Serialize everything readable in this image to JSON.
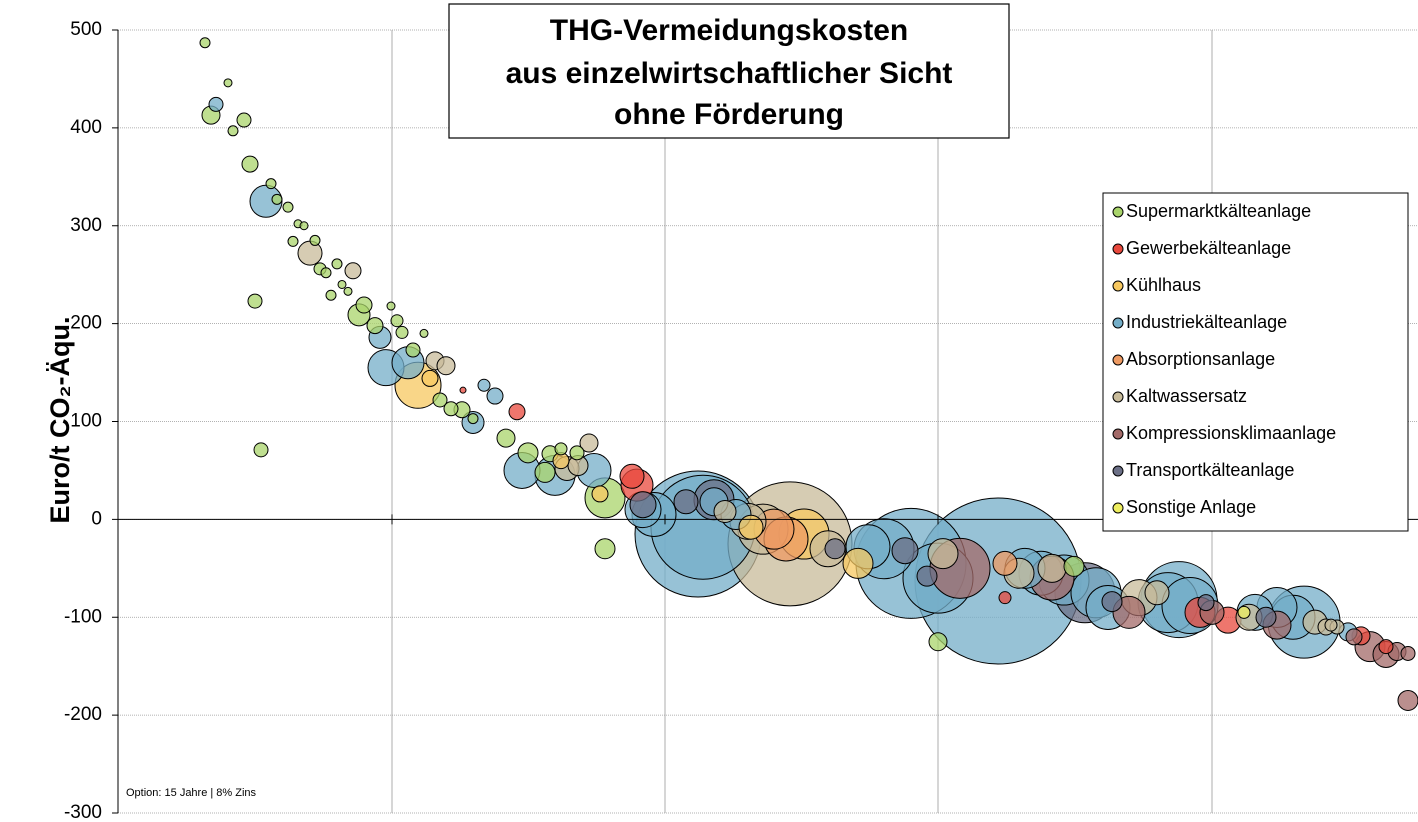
{
  "chart_data": {
    "type": "bubble",
    "title": [
      "THG-Vermeidungskosten",
      "aus einzelwirtschaftlicher Sicht",
      "ohne Förderung"
    ],
    "y_label": "Euro/t CO₂-Äqu.",
    "note": "Option: 15 Jahre | 8% Zins",
    "xlim": [
      0,
      1300
    ],
    "xticks": [
      274,
      547,
      820,
      1094
    ],
    "ylim": [
      -300,
      500
    ],
    "yticks": [
      -300,
      -200,
      -100,
      0,
      100,
      200,
      300,
      400,
      500
    ],
    "grid": true,
    "legend": "right",
    "series": [
      {
        "name": "Supermarktkälteanlage",
        "color": "#a9d46b",
        "x": [
          87,
          93,
          110,
          115,
          126,
          132,
          137,
          143,
          153,
          159,
          170,
          175,
          180,
          186,
          197,
          202,
          208,
          213,
          219,
          224,
          230,
          241,
          246,
          257,
          273,
          279,
          284,
          295,
          306,
          322,
          333,
          344,
          355,
          388,
          410,
          427,
          432,
          443,
          459,
          487,
          487,
          820,
          956
        ],
        "values": [
          487,
          413,
          446,
          397,
          408,
          363,
          223,
          71,
          343,
          327,
          319,
          284,
          302,
          300,
          285,
          256,
          252,
          229,
          261,
          240,
          233,
          209,
          219,
          198,
          218,
          203,
          191,
          173,
          190,
          122,
          113,
          112,
          103,
          83,
          68,
          48,
          67,
          72,
          68,
          22,
          -30,
          -125,
          -48
        ],
        "sizes": [
          5,
          9,
          4,
          5,
          7,
          8,
          7,
          7,
          5,
          5,
          5,
          5,
          4,
          4,
          5,
          6,
          5,
          5,
          5,
          4,
          4,
          11,
          8,
          8,
          4,
          6,
          6,
          7,
          4,
          7,
          7,
          8,
          5,
          9,
          10,
          10,
          8,
          6,
          7,
          20,
          10,
          9,
          10
        ]
      },
      {
        "name": "Gewerbekälteanlage",
        "color": "#e8483c",
        "x": [
          345,
          399,
          514,
          519,
          887,
          1082,
          1110,
          1243,
          1268
        ],
        "values": [
          132,
          110,
          44,
          35,
          -80,
          -95,
          -103,
          -119,
          -130
        ],
        "sizes": [
          3,
          8,
          12,
          16,
          6,
          15,
          13,
          9,
          7
        ]
      },
      {
        "name": "Kühlhaus",
        "color": "#f7c860",
        "x": [
          300,
          312,
          443,
          482,
          633,
          686,
          740
        ],
        "values": [
          137,
          144,
          60,
          26,
          -8,
          -15,
          -45
        ],
        "sizes": [
          23,
          8,
          8,
          8,
          12,
          25,
          15
        ]
      },
      {
        "name": "Industriekälteanlage",
        "color": "#74aec8",
        "x": [
          98,
          148,
          262,
          268,
          290,
          366,
          377,
          355,
          404,
          437,
          476,
          525,
          536,
          580,
          585,
          596,
          618,
          793,
          880,
          820,
          907,
          946,
          978,
          990,
          1050,
          1061,
          1072,
          1137,
          1159,
          1186,
          1175,
          1230,
          766,
          750,
          923
        ],
        "values": [
          424,
          325,
          186,
          155,
          160,
          137,
          126,
          99,
          50,
          45,
          50,
          10,
          5,
          -15,
          -8,
          18,
          5,
          -45,
          -63,
          -60,
          -50,
          -62,
          -75,
          -90,
          -85,
          -82,
          -88,
          -95,
          -90,
          -105,
          -100,
          -115,
          -30,
          -28,
          -55
        ],
        "sizes": [
          7,
          16,
          11,
          18,
          16,
          6,
          8,
          11,
          18,
          20,
          17,
          18,
          22,
          63,
          52,
          14,
          15,
          55,
          83,
          35,
          20,
          25,
          25,
          22,
          30,
          38,
          28,
          18,
          20,
          36,
          22,
          9,
          30,
          22,
          22
        ]
      },
      {
        "name": "Absorptionsanlage",
        "color": "#ee9a62",
        "x": [
          656,
          668,
          887
        ],
        "values": [
          -10,
          -20,
          -45
        ],
        "sizes": [
          20,
          22,
          12
        ]
      },
      {
        "name": "Kaltwassersatz",
        "color": "#c8bb9a",
        "x": [
          192,
          235,
          317,
          328,
          449,
          460,
          471,
          607,
          630,
          672,
          645,
          710,
          825,
          901,
          934,
          1021,
          1039,
          1131,
          1197,
          1208,
          1213,
          1219
        ],
        "values": [
          272,
          254,
          162,
          157,
          52,
          55,
          78,
          8,
          -2,
          -25,
          -10,
          -30,
          -35,
          -55,
          -50,
          -80,
          -75,
          -100,
          -105,
          -110,
          -108,
          -110
        ],
        "sizes": [
          12,
          8,
          9,
          9,
          12,
          10,
          9,
          11,
          18,
          62,
          25,
          18,
          15,
          15,
          14,
          18,
          12,
          13,
          12,
          8,
          6,
          7
        ]
      },
      {
        "name": "Kompressionsklimaanlage",
        "color": "#a36a68",
        "x": [
          934,
          1011,
          1094,
          1159,
          1252,
          1268,
          1279,
          1290,
          1290,
          1236,
          842
        ],
        "values": [
          -60,
          -95,
          -95,
          -108,
          -130,
          -138,
          -135,
          -137,
          -185,
          -120,
          -50
        ],
        "sizes": [
          22,
          16,
          12,
          14,
          15,
          13,
          9,
          7,
          10,
          8,
          30
        ]
      },
      {
        "name": "Transportkälteanlage",
        "color": "#6b6f86",
        "x": [
          525,
          568,
          596,
          787,
          809,
          967,
          994,
          1088,
          1148,
          717
        ],
        "values": [
          15,
          18,
          20,
          -32,
          -58,
          -75,
          -84,
          -85,
          -100,
          -30
        ],
        "sizes": [
          13,
          12,
          20,
          13,
          10,
          30,
          10,
          8,
          10,
          10
        ]
      },
      {
        "name": "Sonstige Anlage",
        "color": "#eeee60",
        "x": [
          1126
        ],
        "values": [
          -95
        ],
        "sizes": [
          6
        ]
      }
    ]
  }
}
